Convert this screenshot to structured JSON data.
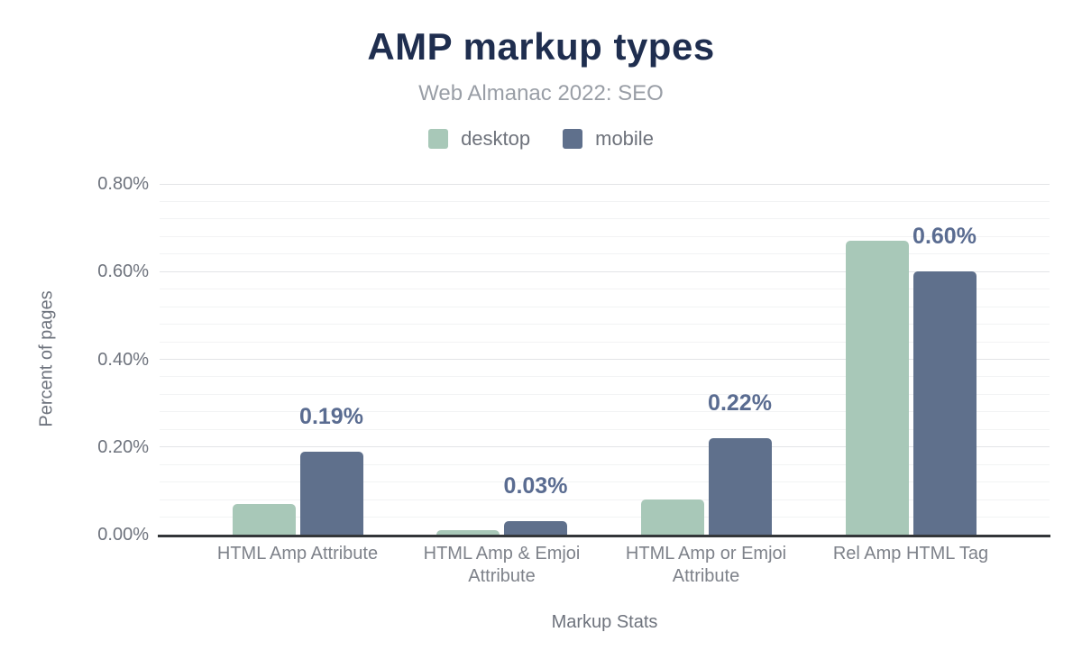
{
  "title": "AMP markup types",
  "subtitle": "Web Almanac 2022: SEO",
  "legend": {
    "items": [
      {
        "label": "desktop",
        "color": "#a8c8b8"
      },
      {
        "label": "mobile",
        "color": "#5f708c"
      }
    ]
  },
  "y_axis": {
    "title": "Percent of pages",
    "ticks": [
      {
        "label": "0.80%",
        "value": 0.8
      },
      {
        "label": "0.60%",
        "value": 0.6
      },
      {
        "label": "0.40%",
        "value": 0.4
      },
      {
        "label": "0.20%",
        "value": 0.2
      },
      {
        "label": "0.00%",
        "value": 0.0
      }
    ]
  },
  "x_axis": {
    "title": "Markup Stats"
  },
  "chart_data": {
    "type": "bar",
    "title": "AMP markup types",
    "subtitle": "Web Almanac 2022: SEO",
    "xlabel": "Markup Stats",
    "ylabel": "Percent of pages",
    "ylim": [
      0,
      0.8
    ],
    "y_major_step": 0.2,
    "y_minor_step": 0.04,
    "grid": true,
    "legend_position": "top",
    "categories": [
      "HTML Amp Attribute",
      "HTML Amp & Emjoi Attribute",
      "HTML Amp or Emjoi Attribute",
      "Rel Amp HTML Tag"
    ],
    "series": [
      {
        "name": "desktop",
        "color": "#a8c8b8",
        "values": [
          0.07,
          0.01,
          0.08,
          0.67
        ]
      },
      {
        "name": "mobile",
        "color": "#5f708c",
        "values": [
          0.19,
          0.03,
          0.22,
          0.6
        ]
      }
    ],
    "data_labels": {
      "series": "mobile",
      "texts": [
        "0.19%",
        "0.03%",
        "0.22%",
        "0.60%"
      ]
    }
  },
  "colors": {
    "title": "#1f2e4f",
    "subtitle": "#999ea6",
    "axis_text": "#6e737d",
    "category_text": "#7e828a",
    "data_label": "#5a6c91",
    "baseline": "#333639",
    "grid_major": "#e3e4e7",
    "grid_minor": "#f2f3f4",
    "background": "#ffffff"
  }
}
